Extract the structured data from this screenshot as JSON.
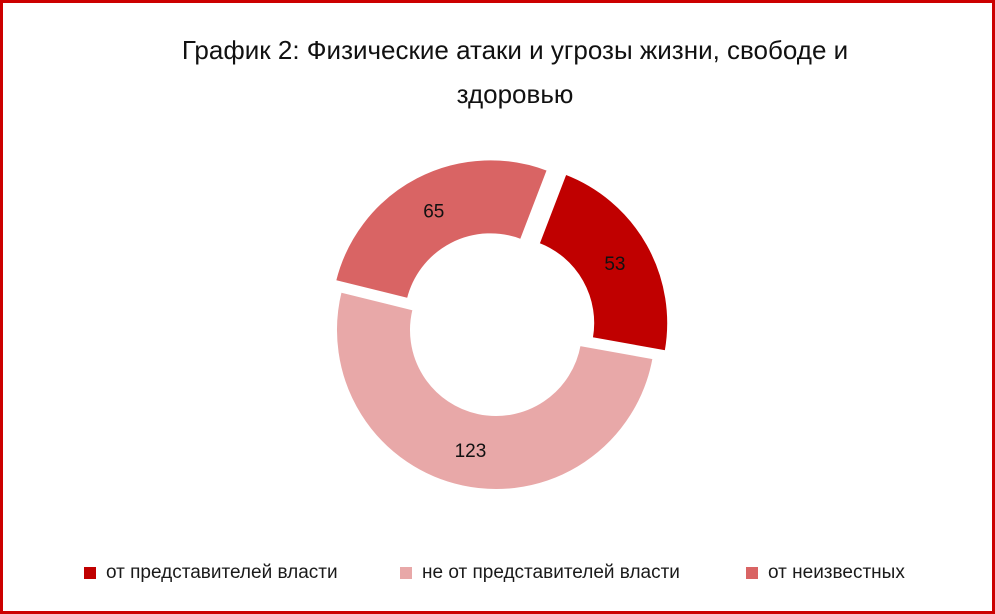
{
  "chart_data": {
    "type": "pie",
    "subtype": "donut",
    "title": "График 2: Физические атаки и угрозы жизни, свободе и здоровью",
    "categories": [
      "от представителей власти",
      "не от представителей власти",
      "от неизвестных"
    ],
    "values": [
      53,
      123,
      65
    ],
    "data_labels": [
      "53",
      "123",
      "65"
    ],
    "colors": [
      "#c00000",
      "#e8a8a8",
      "#d96464"
    ],
    "legend_position": "bottom"
  }
}
